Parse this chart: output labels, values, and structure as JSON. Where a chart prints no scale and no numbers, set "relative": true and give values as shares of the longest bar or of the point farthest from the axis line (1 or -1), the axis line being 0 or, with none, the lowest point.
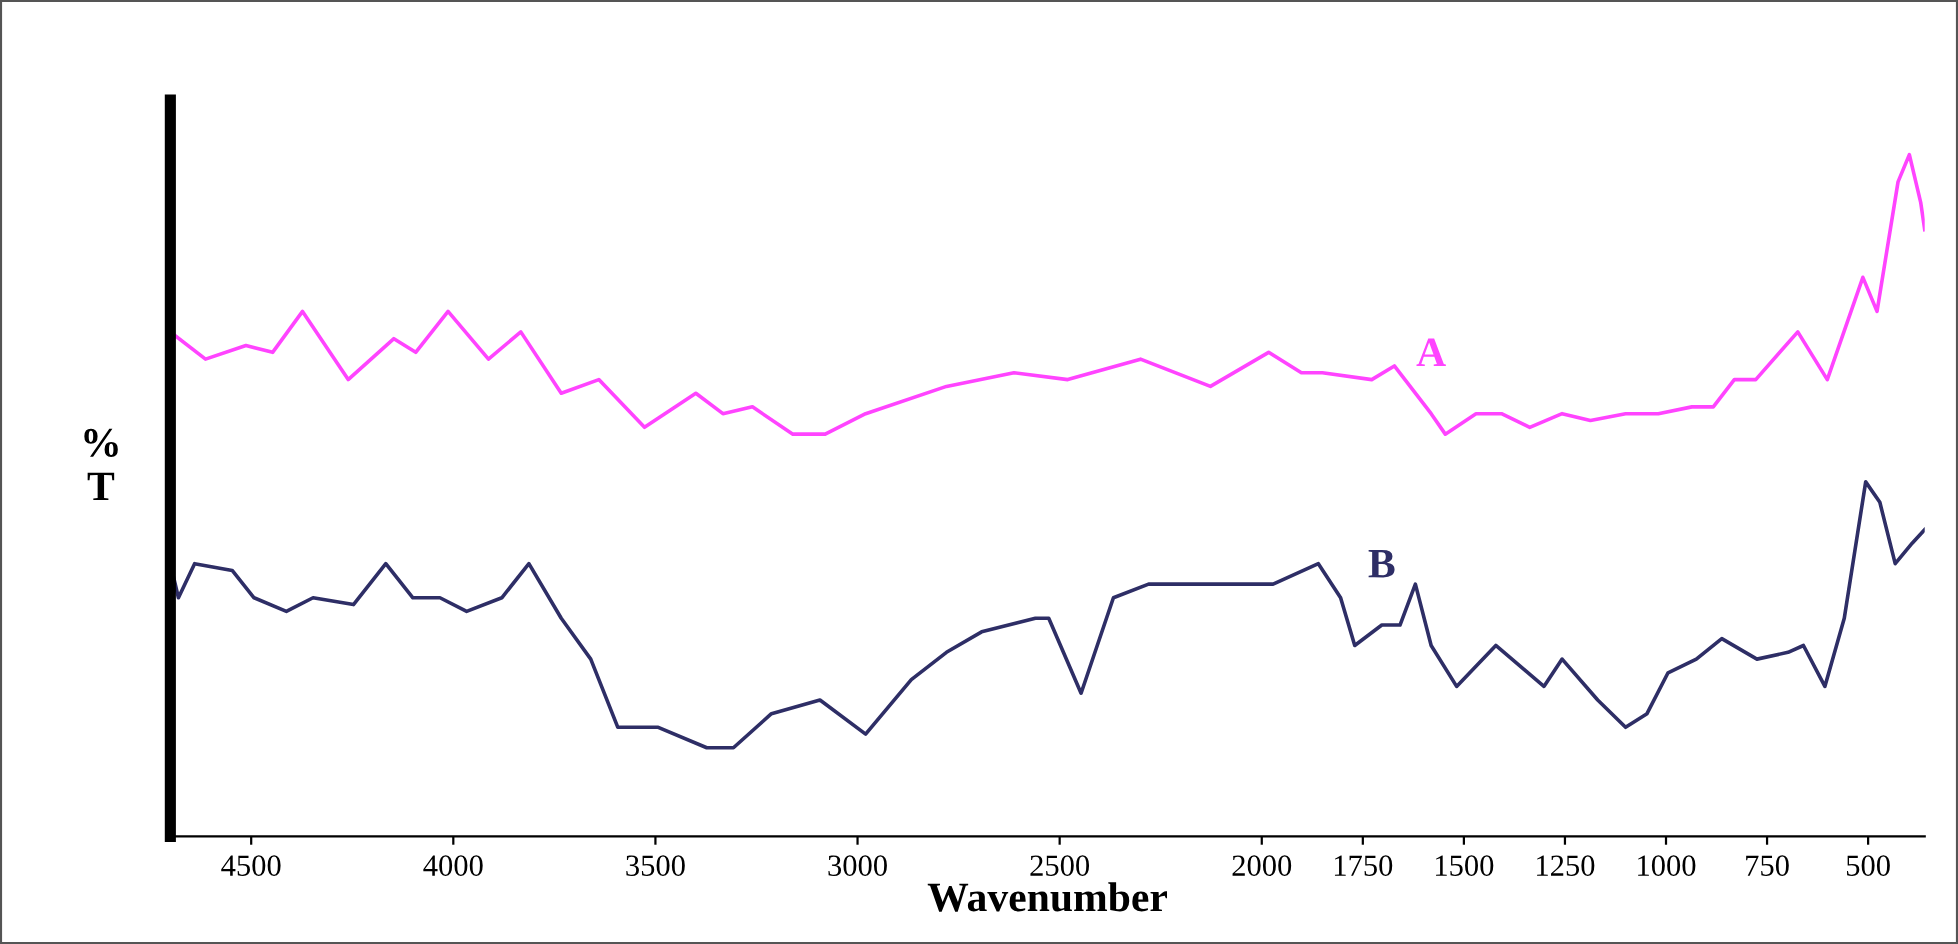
{
  "chart_data": {
    "type": "line",
    "relative": true,
    "xlabel": "Wavenumber",
    "ylabel": "%\nT",
    "xlim": [
      4700,
      360
    ],
    "xticks": [
      4500,
      4000,
      3500,
      3000,
      2500,
      2000,
      1750,
      1500,
      1250,
      1000,
      750,
      500
    ],
    "grid": false,
    "legend": false,
    "marker": "none",
    "line_style": "solid",
    "series": [
      {
        "name": "A",
        "color": "#ff44ff",
        "x": [
          4700,
          4613,
          4513,
          4447,
          4373,
          4260,
          4147,
          4093,
          4013,
          3913,
          3833,
          3733,
          3640,
          3527,
          3400,
          3333,
          3260,
          3160,
          3080,
          2980,
          2780,
          2613,
          2480,
          2300,
          2127,
          1983,
          1902,
          1850,
          1728,
          1672,
          1581,
          1546,
          1470,
          1407,
          1337,
          1257,
          1187,
          1100,
          1019,
          936,
          883,
          831,
          778,
          674,
          601,
          513,
          478,
          426,
          398,
          370,
          360
        ],
        "values": [
          0.74,
          0.7,
          0.72,
          0.71,
          0.77,
          0.67,
          0.73,
          0.71,
          0.77,
          0.7,
          0.74,
          0.65,
          0.67,
          0.6,
          0.65,
          0.62,
          0.63,
          0.59,
          0.59,
          0.62,
          0.66,
          0.68,
          0.67,
          0.7,
          0.66,
          0.71,
          0.68,
          0.68,
          0.67,
          0.69,
          0.62,
          0.59,
          0.62,
          0.62,
          0.6,
          0.62,
          0.61,
          0.62,
          0.62,
          0.63,
          0.63,
          0.67,
          0.67,
          0.74,
          0.67,
          0.82,
          0.77,
          0.96,
          1.0,
          0.93,
          0.89
        ]
      },
      {
        "name": "B",
        "color": "#2e2e66",
        "x": [
          4700,
          4680,
          4640,
          4547,
          4493,
          4413,
          4347,
          4247,
          4167,
          4100,
          4033,
          3967,
          3880,
          3813,
          3733,
          3660,
          3593,
          3493,
          3373,
          3307,
          3213,
          3093,
          2980,
          2867,
          2780,
          2693,
          2560,
          2527,
          2447,
          2367,
          2280,
          2080,
          1972,
          1860,
          1805,
          1770,
          1703,
          1658,
          1620,
          1581,
          1518,
          1421,
          1302,
          1257,
          1169,
          1100,
          1047,
          995,
          925,
          862,
          775,
          698,
          660,
          607,
          559,
          506,
          471,
          433,
          391,
          360
        ],
        "values": [
          0.4,
          0.35,
          0.4,
          0.39,
          0.35,
          0.33,
          0.35,
          0.34,
          0.4,
          0.35,
          0.35,
          0.33,
          0.35,
          0.4,
          0.32,
          0.26,
          0.16,
          0.16,
          0.13,
          0.13,
          0.18,
          0.2,
          0.15,
          0.23,
          0.27,
          0.3,
          0.32,
          0.32,
          0.21,
          0.35,
          0.37,
          0.37,
          0.37,
          0.4,
          0.35,
          0.28,
          0.31,
          0.31,
          0.37,
          0.28,
          0.22,
          0.28,
          0.22,
          0.26,
          0.2,
          0.16,
          0.18,
          0.24,
          0.26,
          0.29,
          0.26,
          0.27,
          0.28,
          0.22,
          0.32,
          0.52,
          0.49,
          0.4,
          0.43,
          0.45
        ]
      }
    ]
  }
}
